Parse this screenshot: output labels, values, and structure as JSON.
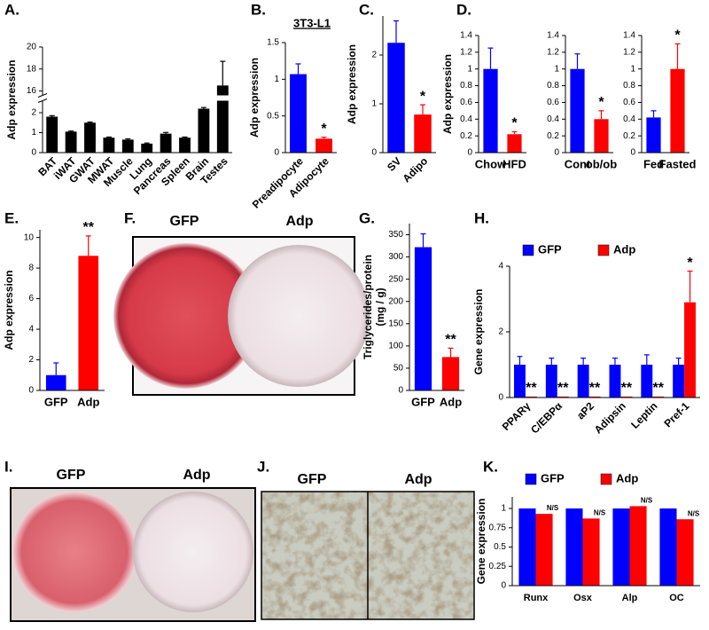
{
  "chart_data": [
    {
      "type": "bar",
      "panel": "A.",
      "ylabel": "Adp expression",
      "categories": [
        "BAT",
        "iWAT",
        "GWAT",
        "MWAT",
        "Muscle",
        "Lung",
        "Pancreas",
        "Spleen",
        "Brain",
        "Testes"
      ],
      "series": [
        {
          "color": "#000000",
          "values": [
            1.8,
            1.05,
            1.5,
            0.75,
            0.65,
            0.45,
            0.95,
            0.75,
            2.2,
            16.5
          ],
          "errors": [
            0.05,
            0.03,
            0.03,
            0.03,
            0.04,
            0.03,
            0.06,
            0.03,
            0.06,
            2.2
          ]
        }
      ],
      "ylim": [
        0,
        20
      ],
      "ybreak": [
        2.6,
        15.6
      ],
      "yticks": [
        0,
        1,
        2,
        16,
        18,
        20
      ],
      "rotate_xlabels": true
    },
    {
      "type": "bar",
      "panel": "B.",
      "title": "3T3-L1",
      "ylabel": "Adp expression",
      "categories": [
        "Preadipocyte",
        "Adipocyte"
      ],
      "series": [
        {
          "colors": [
            "#0000ff",
            "#ff0000"
          ],
          "values": [
            1.07,
            0.19
          ],
          "errors": [
            0.14,
            0.02
          ],
          "significance": [
            null,
            "*"
          ]
        }
      ],
      "ylim": [
        0,
        1.5
      ],
      "yticks": [
        0,
        0.5,
        1,
        1.5
      ],
      "rotate_xlabels": true
    },
    {
      "type": "bar",
      "panel": "C.",
      "ylabel": "Adp expression",
      "categories": [
        "SV",
        "Adipo"
      ],
      "series": [
        {
          "colors": [
            "#0000ff",
            "#ff0000"
          ],
          "values": [
            2.25,
            0.78
          ],
          "errors": [
            0.45,
            0.2
          ],
          "significance": [
            null,
            "*"
          ]
        }
      ],
      "ylim": [
        0,
        2.8
      ],
      "yticks": [
        0,
        1,
        2
      ],
      "rotate_xlabels": true
    },
    {
      "type": "bar",
      "panel": "D.",
      "ylabel": "Adp expression",
      "categories": [
        "Chow",
        "HFD"
      ],
      "series": [
        {
          "colors": [
            "#0000ff",
            "#ff0000"
          ],
          "values": [
            1.0,
            0.22
          ],
          "errors": [
            0.25,
            0.03
          ],
          "significance": [
            null,
            "*"
          ]
        }
      ],
      "ylim": [
        0,
        1.4
      ],
      "yticks": [
        0,
        0.2,
        0.4,
        0.6,
        0.8,
        1,
        1.2,
        1.4
      ]
    },
    {
      "type": "bar",
      "categories": [
        "Cont",
        "ob/ob"
      ],
      "series": [
        {
          "colors": [
            "#0000ff",
            "#ff0000"
          ],
          "values": [
            1.0,
            0.4
          ],
          "errors": [
            0.18,
            0.1
          ],
          "significance": [
            null,
            "*"
          ]
        }
      ],
      "ylim": [
        0,
        1.4
      ],
      "yticks": [
        0,
        0.2,
        0.4,
        0.6,
        0.8,
        1,
        1.2,
        1.4
      ]
    },
    {
      "type": "bar",
      "categories": [
        "Fed",
        "Fasted"
      ],
      "series": [
        {
          "colors": [
            "#0000ff",
            "#ff0000"
          ],
          "values": [
            0.42,
            1.0
          ],
          "errors": [
            0.08,
            0.3
          ],
          "significance": [
            null,
            "*"
          ]
        }
      ],
      "ylim": [
        0,
        1.4
      ],
      "yticks": [
        0,
        0.2,
        0.4,
        0.6,
        0.8,
        1,
        1.2,
        1.4
      ]
    },
    {
      "type": "bar",
      "panel": "E.",
      "ylabel": "Adp expression",
      "categories": [
        "GFP",
        "Adp"
      ],
      "series": [
        {
          "colors": [
            "#0000ff",
            "#ff0000"
          ],
          "values": [
            1.0,
            8.8
          ],
          "errors": [
            0.8,
            1.3
          ],
          "significance": [
            null,
            "**"
          ]
        }
      ],
      "ylim": [
        0,
        10.5
      ],
      "yticks": [
        0,
        2,
        4,
        6,
        8,
        10
      ]
    },
    {
      "type": "bar",
      "panel": "G.",
      "ylabel": [
        "Triglycerides/protein",
        "(mg / g)"
      ],
      "categories": [
        "GFP",
        "Adp"
      ],
      "series": [
        {
          "colors": [
            "#0000ff",
            "#ff0000"
          ],
          "values": [
            322,
            75
          ],
          "errors": [
            30,
            20
          ],
          "significance": [
            null,
            "**"
          ]
        }
      ],
      "ylim": [
        0,
        375
      ],
      "yticks": [
        0,
        50,
        100,
        150,
        200,
        250,
        300,
        350
      ]
    },
    {
      "type": "bar",
      "panel": "H.",
      "ylabel": "Gene expression",
      "categories": [
        "PPARγ",
        "C/EBPα",
        "aP2",
        "Adipsin",
        "Leptin",
        "Pref-1"
      ],
      "series": [
        {
          "name": "GFP",
          "color": "#0000ff",
          "values": [
            1,
            1,
            1,
            1,
            1,
            1
          ],
          "errors": [
            0.25,
            0.2,
            0.2,
            0.2,
            0.3,
            0.2
          ]
        },
        {
          "name": "Adp",
          "color": "#ff0000",
          "values": [
            0.03,
            0.03,
            0.03,
            0.03,
            0.03,
            2.9
          ],
          "errors": [
            null,
            null,
            null,
            null,
            null,
            0.95
          ],
          "significance": [
            "**",
            "**",
            "**",
            "**",
            "**",
            "*"
          ]
        }
      ],
      "ylim": [
        0,
        4
      ],
      "yticks": [
        0,
        2,
        4
      ],
      "rotate_xlabels": true,
      "legend": "top"
    },
    {
      "type": "bar",
      "panel": "K.",
      "ylabel": "Gene expression",
      "categories": [
        "Runx",
        "Osx",
        "Alp",
        "OC"
      ],
      "series": [
        {
          "name": "GFP",
          "color": "#0000ff",
          "values": [
            1,
            1,
            1,
            1
          ]
        },
        {
          "name": "Adp",
          "color": "#ff0000",
          "values": [
            0.93,
            0.87,
            1.03,
            0.86
          ],
          "significance": [
            "N/S",
            "N/S",
            "N/S",
            "N/S"
          ]
        }
      ],
      "ylim": [
        0,
        1.15
      ],
      "yticks": [
        0,
        0.25,
        0.5,
        0.75,
        1
      ],
      "legend": "top"
    }
  ],
  "photos": [
    {
      "panel": "F.",
      "labels": [
        "GFP",
        "Adp"
      ]
    },
    {
      "panel": "I.",
      "labels": [
        "GFP",
        "Adp"
      ]
    },
    {
      "panel": "J.",
      "labels": [
        "GFP",
        "Adp"
      ]
    }
  ]
}
